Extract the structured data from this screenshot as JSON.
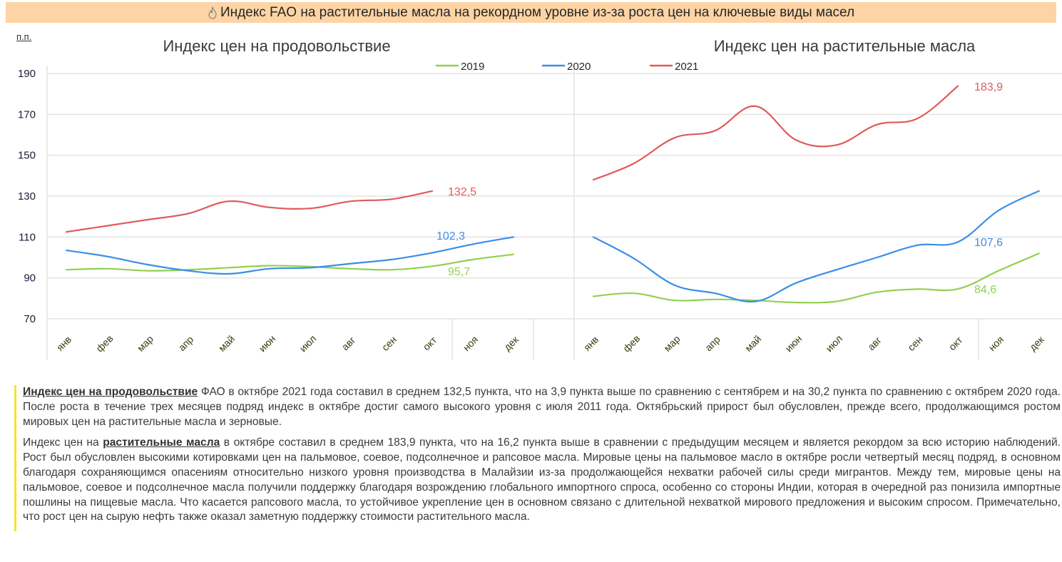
{
  "header": {
    "icon": "flame-icon",
    "title": "Индекс FAO на растительные масла на рекордном уровне из-за роста цен на ключевые виды масел"
  },
  "unit_label": "п.п.",
  "legend": [
    {
      "name": "2019",
      "color": "#92d050"
    },
    {
      "name": "2020",
      "color": "#3b8ee8"
    },
    {
      "name": "2021",
      "color": "#e05a5a"
    }
  ],
  "chart_data": [
    {
      "type": "line",
      "title": "Индекс цен на продовольствие",
      "ylabel": "п.п.",
      "ylim": [
        70,
        190
      ],
      "yticks": [
        70,
        90,
        110,
        130,
        150,
        170,
        190
      ],
      "grid": true,
      "categories": [
        "янв",
        "фев",
        "мар",
        "апр",
        "май",
        "июн",
        "июл",
        "авг",
        "сен",
        "окт",
        "ноя",
        "дек"
      ],
      "series": [
        {
          "name": "2019",
          "color": "#92d050",
          "values": [
            94,
            94.5,
            93.5,
            94,
            95,
            96,
            95.5,
            94.5,
            94,
            95.7,
            99,
            101.5
          ]
        },
        {
          "name": "2020",
          "color": "#3b8ee8",
          "values": [
            103.5,
            100.5,
            96.5,
            93.5,
            92,
            94.5,
            95,
            97,
            99,
            102.3,
            106.5,
            110
          ]
        },
        {
          "name": "2021",
          "color": "#e05a5a",
          "values": [
            112.5,
            115.5,
            118.5,
            121.5,
            127.5,
            124.5,
            124,
            127.5,
            128.5,
            132.5
          ]
        }
      ],
      "annotations": [
        {
          "series": "2021",
          "text": "132,5"
        },
        {
          "series": "2020",
          "text": "102,3"
        },
        {
          "series": "2019",
          "text": "95,7"
        }
      ]
    },
    {
      "type": "line",
      "title": "Индекс цен на растительные масла",
      "ylabel": "п.п.",
      "ylim": [
        70,
        190
      ],
      "yticks": [
        70,
        90,
        110,
        130,
        150,
        170,
        190
      ],
      "grid": true,
      "categories": [
        "янв",
        "фев",
        "мар",
        "апр",
        "май",
        "июн",
        "июл",
        "авг",
        "сен",
        "окт",
        "ноя",
        "дек"
      ],
      "series": [
        {
          "name": "2019",
          "color": "#92d050",
          "values": [
            81,
            82.5,
            79,
            79.5,
            79,
            78,
            78.5,
            83,
            84.5,
            84.6,
            93.5,
            102
          ]
        },
        {
          "name": "2020",
          "color": "#3b8ee8",
          "values": [
            110,
            99.5,
            86.5,
            82.5,
            78.5,
            87.5,
            94,
            100,
            106,
            107.6,
            123,
            132.5
          ]
        },
        {
          "name": "2021",
          "color": "#e05a5a",
          "values": [
            138,
            146,
            158.5,
            162,
            174,
            157.5,
            155,
            165,
            168,
            183.9
          ]
        }
      ],
      "annotations": [
        {
          "series": "2021",
          "text": "183,9"
        },
        {
          "series": "2020",
          "text": "107,6"
        },
        {
          "series": "2019",
          "text": "84,6"
        }
      ]
    }
  ],
  "text": {
    "p1_link": "Индекс цен на продовольствие",
    "p1_rest": " ФАО в октябре 2021 года составил в среднем 132,5 пункта, что на 3,9 пункта выше по сравнению с сентябрем и на 30,2 пункта по сравнению с октябрем 2020 года. После роста в течение трех месяцев подряд индекс в октябре достиг самого высокого уровня с июля 2011 года. Октябрьский прирост был обусловлен, прежде всего, продолжающимся ростом мировых цен на растительные масла и зерновые.",
    "p2_pre": "Индекс цен на ",
    "p2_link": "растительные масла",
    "p2_rest": " в октябре составил в среднем 183,9 пункта, что на 16,2 пункта выше в сравнении с предыдущим месяцем и является рекордом за всю историю наблюдений. Рост был обусловлен высокими котировками цен на пальмовое, соевое, подсолнечное и рапсовое масла. Мировые цены на пальмовое масло в октябре росли четвертый месяц подряд, в основном благодаря сохраняющимся опасениям относительно низкого уровня производства в Малайзии из-за продолжающейся нехватки рабочей силы среди мигрантов. Между тем, мировые цены на пальмовое, соевое и подсолнечное масла получили поддержку благодаря возрождению глобального импортного спроса, особенно со стороны Индии, которая в очередной раз понизила импортные пошлины на пищевые масла. Что касается рапсового масла, то устойчивое укрепление цен в основном связано с длительной нехваткой мирового предложения и высоким спросом. Примечательно, что рост цен на сырую нефть также оказал заметную поддержку стоимости растительного масла."
  }
}
